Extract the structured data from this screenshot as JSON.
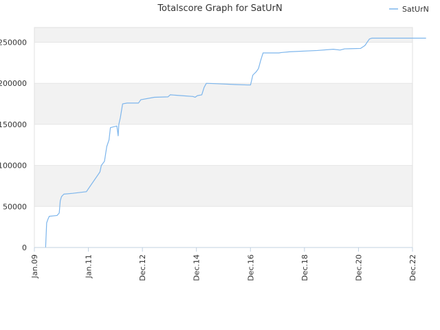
{
  "chart_data": {
    "type": "line",
    "title": "Totalscore Graph for SatUrN",
    "xlabel": "",
    "ylabel": "",
    "legend": {
      "position": "top-right"
    },
    "grid": true,
    "alternating_bands": true,
    "colors": {
      "series": "#7cb5ec",
      "band": "#f2f2f2",
      "grid": "#e6e6e6",
      "axis": "#c0d0e0",
      "text": "#333333"
    },
    "x_ticks": [
      "Jan.09",
      "Jan.11",
      "Dec.12",
      "Dec.14",
      "Dec.16",
      "Dec.18",
      "Dec.20",
      "Dec.22"
    ],
    "y_ticks": [
      "0",
      "50000",
      "100000",
      "150000",
      "200000",
      "250000"
    ],
    "ylim": [
      0,
      268000
    ],
    "series": [
      {
        "name": "SatUrN",
        "points": [
          [
            "2009-06-01",
            0
          ],
          [
            "2009-06-15",
            30000
          ],
          [
            "2009-07-05",
            35000
          ],
          [
            "2009-07-20",
            38000
          ],
          [
            "2009-11-01",
            39000
          ],
          [
            "2009-12-01",
            42000
          ],
          [
            "2009-12-15",
            57000
          ],
          [
            "2010-01-01",
            62000
          ],
          [
            "2010-02-01",
            65000
          ],
          [
            "2010-06-01",
            66000
          ],
          [
            "2010-12-01",
            68000
          ],
          [
            "2011-06-01",
            92000
          ],
          [
            "2011-06-20",
            100000
          ],
          [
            "2011-08-01",
            105000
          ],
          [
            "2011-09-01",
            123000
          ],
          [
            "2011-10-01",
            131000
          ],
          [
            "2011-10-20",
            146000
          ],
          [
            "2011-12-01",
            147000
          ],
          [
            "2012-01-15",
            148000
          ],
          [
            "2012-02-01",
            136000
          ],
          [
            "2012-02-10",
            150000
          ],
          [
            "2012-03-01",
            158000
          ],
          [
            "2012-04-01",
            175000
          ],
          [
            "2012-06-01",
            176000
          ],
          [
            "2012-11-01",
            176000
          ],
          [
            "2012-12-01",
            180000
          ],
          [
            "2013-06-01",
            183000
          ],
          [
            "2013-12-01",
            183500
          ],
          [
            "2014-01-01",
            186000
          ],
          [
            "2014-06-01",
            185000
          ],
          [
            "2014-11-01",
            184000
          ],
          [
            "2014-12-01",
            183000
          ],
          [
            "2015-01-01",
            185000
          ],
          [
            "2015-03-01",
            186000
          ],
          [
            "2015-04-01",
            195000
          ],
          [
            "2015-05-01",
            200000
          ],
          [
            "2015-10-01",
            199500
          ],
          [
            "2016-06-01",
            198500
          ],
          [
            "2016-11-01",
            198000
          ],
          [
            "2016-12-15",
            198000
          ],
          [
            "2017-01-15",
            210000
          ],
          [
            "2017-03-01",
            214000
          ],
          [
            "2017-04-01",
            218000
          ],
          [
            "2017-05-01",
            228000
          ],
          [
            "2017-06-01",
            237000
          ],
          [
            "2018-01-01",
            237000
          ],
          [
            "2018-02-01",
            237500
          ],
          [
            "2018-06-01",
            238500
          ],
          [
            "2019-06-01",
            240000
          ],
          [
            "2020-01-01",
            241500
          ],
          [
            "2020-04-01",
            240500
          ],
          [
            "2020-06-01",
            242000
          ],
          [
            "2021-01-01",
            242500
          ],
          [
            "2021-03-01",
            246000
          ],
          [
            "2021-05-01",
            254000
          ],
          [
            "2021-06-01",
            255000
          ],
          [
            "2022-01-01",
            255000
          ],
          [
            "2023-06-01",
            255000
          ]
        ]
      }
    ]
  }
}
